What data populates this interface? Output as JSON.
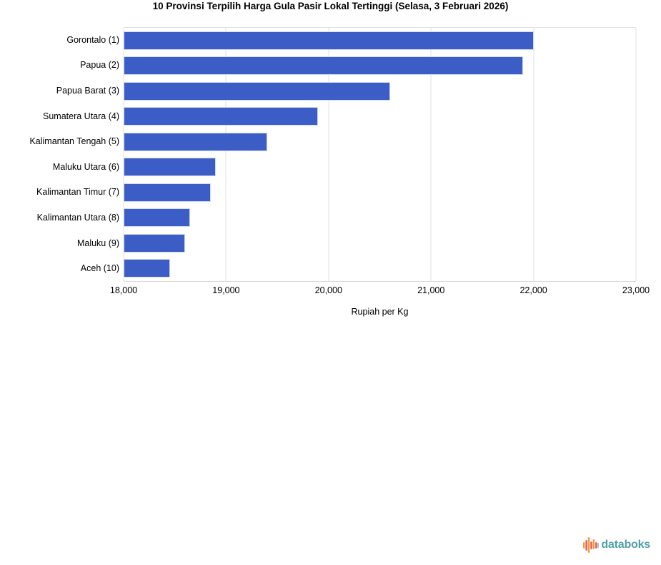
{
  "title": "10 Provinsi Terpilih Harga Gula Pasir Lokal Tertinggi (Selasa, 3 Februari 2026)",
  "chart_data": {
    "type": "bar",
    "orientation": "horizontal",
    "title": "10 Provinsi Terpilih Harga Gula Pasir Lokal Tertinggi (Selasa, 3 Februari 2026)",
    "categories": [
      "Gorontalo (1)",
      "Papua (2)",
      "Papua Barat (3)",
      "Sumatera Utara (4)",
      "Kalimantan Tengah (5)",
      "Maluku Utara (6)",
      "Kalimantan Timur (7)",
      "Kalimantan Utara (8)",
      "Maluku (9)",
      "Aceh (10)"
    ],
    "values": [
      22000,
      21900,
      20600,
      19900,
      19400,
      18900,
      18850,
      18650,
      18600,
      18450
    ],
    "xlabel": "Rupiah per Kg",
    "ylabel": "",
    "xlim": [
      18000,
      23000
    ],
    "xticks": [
      18000,
      19000,
      20000,
      21000,
      22000,
      23000
    ],
    "xtick_labels": [
      "18,000",
      "19,000",
      "20,000",
      "21,000",
      "22,000",
      "23,000"
    ],
    "bar_color": "#3c5dc5",
    "grid": true,
    "legend": "none"
  },
  "footer": {
    "brand": "databoks",
    "brand_color": "#4fa0a5",
    "icon": "databoks-pulse-icon",
    "icon_colors": [
      "#f2994a",
      "#e85a43",
      "#9dc3e6"
    ]
  }
}
